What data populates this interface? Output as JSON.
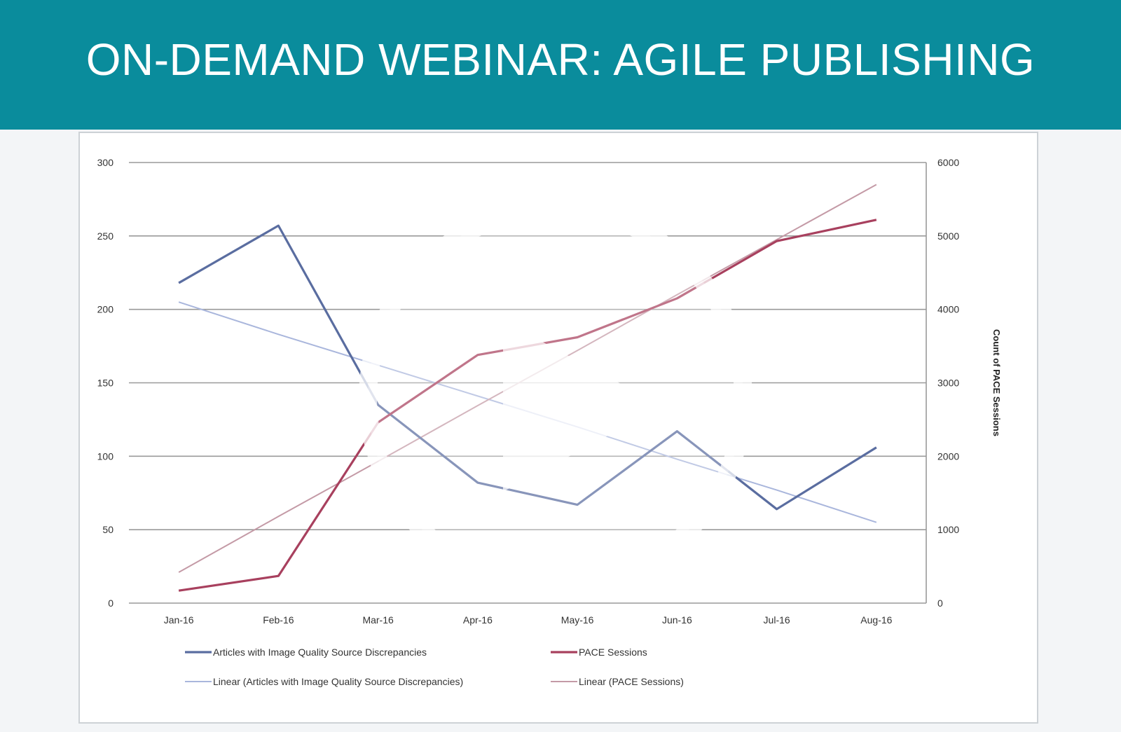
{
  "banner": {
    "title": "ON-DEMAND WEBINAR: AGILE PUBLISHING"
  },
  "colors": {
    "banner": "#0a8c9c",
    "articles": "#5a6da0",
    "pace": "#a8405e",
    "articles_trend": "#a9b6dc",
    "pace_trend": "#c49aa6",
    "gridline": "#9a9a9a"
  },
  "player": {
    "play_icon": "play-icon"
  },
  "chart_data": {
    "type": "line",
    "categories": [
      "Jan-16",
      "Feb-16",
      "Mar-16",
      "Apr-16",
      "May-16",
      "Jun-16",
      "Jul-16",
      "Aug-16"
    ],
    "y_left": {
      "ylim": [
        0,
        300
      ],
      "ticks": [
        "0",
        "50",
        "100",
        "150",
        "200",
        "250",
        "300"
      ]
    },
    "y_right": {
      "ylim": [
        0,
        6000
      ],
      "ticks": [
        "0",
        "1000",
        "2000",
        "3000",
        "4000",
        "5000",
        "6000"
      ],
      "label": "Count of PACE Sessions"
    },
    "grid": true,
    "legend_position": "bottom",
    "series": [
      {
        "name": "Articles  with Image Quality Source Discrepancies",
        "axis": "left",
        "style": "solid",
        "values": [
          218,
          257,
          135,
          82,
          67,
          117,
          64,
          106
        ]
      },
      {
        "name": "PACE Sessions",
        "axis": "right",
        "style": "solid",
        "values": [
          170,
          370,
          2460,
          3380,
          3620,
          4150,
          4930,
          5220
        ]
      },
      {
        "name": "Linear  (Articles with Image Quality Source Discrepancies)",
        "axis": "left",
        "style": "trend",
        "values": [
          205,
          183,
          162,
          141,
          120,
          98,
          77,
          55
        ]
      },
      {
        "name": "Linear   (PACE Sessions)",
        "axis": "right",
        "style": "trend",
        "values": [
          420,
          1180,
          1930,
          2690,
          3440,
          4200,
          4950,
          5700
        ]
      }
    ]
  }
}
